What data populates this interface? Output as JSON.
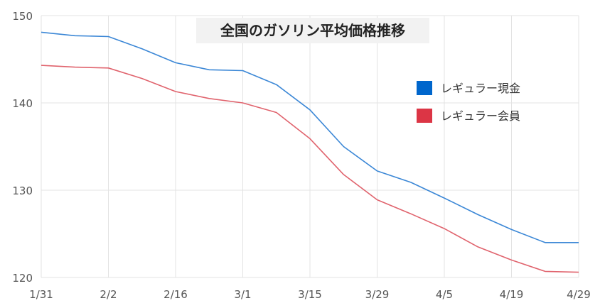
{
  "chart_data": {
    "type": "line",
    "title": "全国のガソリン平均価格推移",
    "xlabel": "",
    "ylabel": "",
    "x": [
      "1/31",
      "",
      "2/2",
      "",
      "2/16",
      "",
      "3/1",
      "",
      "3/15",
      "",
      "3/29",
      "",
      "4/5",
      "",
      "4/19",
      "",
      "4/29"
    ],
    "tick_labels": [
      "1/31",
      "2/2",
      "2/16",
      "3/1",
      "3/15",
      "3/29",
      "4/5",
      "4/19",
      "4/29"
    ],
    "ylim": [
      120,
      150
    ],
    "yticks": [
      120,
      130,
      140,
      150
    ],
    "grid": true,
    "legend_position": "right",
    "series": [
      {
        "name": "レギュラー現金",
        "color": "#3b87d6",
        "values": [
          148.1,
          147.7,
          147.6,
          146.2,
          144.6,
          143.8,
          143.7,
          142.1,
          139.2,
          135.0,
          132.2,
          130.9,
          129.1,
          127.2,
          125.5,
          124.0,
          124.0
        ]
      },
      {
        "name": "レギュラー会員",
        "color": "#e0636d",
        "values": [
          144.3,
          144.1,
          144.0,
          142.8,
          141.3,
          140.5,
          140.0,
          138.9,
          135.9,
          131.8,
          128.9,
          127.3,
          125.6,
          123.5,
          122.0,
          120.7,
          120.6
        ]
      }
    ]
  },
  "legend_swatch_colors": [
    "#0066cc",
    "#dc3545"
  ]
}
